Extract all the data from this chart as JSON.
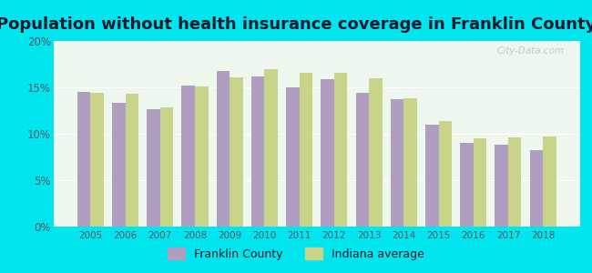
{
  "title": "Population without health insurance coverage in Franklin County",
  "years": [
    2005,
    2006,
    2007,
    2008,
    2009,
    2010,
    2011,
    2012,
    2013,
    2014,
    2015,
    2016,
    2017,
    2018
  ],
  "franklin_county": [
    14.5,
    13.3,
    12.6,
    15.2,
    16.8,
    16.2,
    15.0,
    15.9,
    14.4,
    13.7,
    11.0,
    9.0,
    8.8,
    8.2
  ],
  "indiana_avg": [
    14.4,
    14.3,
    12.8,
    15.1,
    16.1,
    17.0,
    16.6,
    16.6,
    16.0,
    13.8,
    11.4,
    9.5,
    9.6,
    9.7
  ],
  "franklin_color": "#b09ec0",
  "indiana_color": "#c8d48a",
  "background_outer": "#00e5ee",
  "background_inner": "#edf7ee",
  "ylim": [
    0,
    20
  ],
  "yticks": [
    0,
    5,
    10,
    15,
    20
  ],
  "bar_width": 0.38,
  "legend_franklin": "Franklin County",
  "legend_indiana": "Indiana average",
  "title_fontsize": 13,
  "title_color": "#1a1a2e",
  "tick_color": "#555566",
  "watermark": "City-Data.com"
}
